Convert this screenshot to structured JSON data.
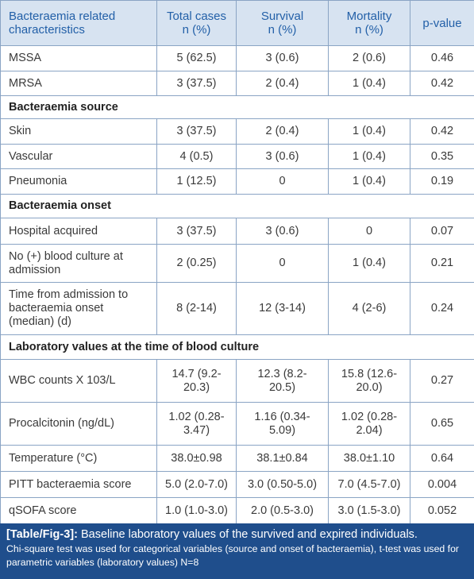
{
  "table": {
    "header": [
      [
        "Bacteraemia related",
        "characteristics"
      ],
      [
        "Total cases",
        "n (%)"
      ],
      [
        "Survival",
        "n (%)"
      ],
      [
        "Mortality",
        "n (%)"
      ],
      [
        "p-value"
      ]
    ],
    "rows": [
      {
        "cells": [
          "MSSA",
          "5 (62.5)",
          "3 (0.6)",
          "2 (0.6)",
          "0.46"
        ]
      },
      {
        "cells": [
          "MRSA",
          "3 (37.5)",
          "2 (0.4)",
          "1 (0.4)",
          "0.42"
        ]
      },
      {
        "section": "Bacteraemia source"
      },
      {
        "cells": [
          "Skin",
          "3 (37.5)",
          "2 (0.4)",
          "1 (0.4)",
          "0.42"
        ]
      },
      {
        "cells": [
          "Vascular",
          "4 (0.5)",
          "3 (0.6)",
          "1 (0.4)",
          "0.35"
        ]
      },
      {
        "cells": [
          "Pneumonia",
          "1 (12.5)",
          "0",
          "1 (0.4)",
          "0.19"
        ]
      },
      {
        "section": "Bacteraemia onset"
      },
      {
        "cells": [
          "Hospital acquired",
          "3 (37.5)",
          "3 (0.6)",
          "0",
          "0.07"
        ]
      },
      {
        "cells": [
          "No (+) blood culture at admission",
          "2 (0.25)",
          "0",
          "1 (0.4)",
          "0.21"
        ]
      },
      {
        "cells": [
          "Time from admission to bacteraemia onset (median) (d)",
          "8 (2-14)",
          "12 (3-14)",
          "4 (2-6)",
          "0.24"
        ]
      },
      {
        "section": "Laboratory values at the time of blood culture"
      },
      {
        "cells": [
          "WBC counts X 103/L",
          "14.7 (9.2-20.3)",
          "12.3 (8.2-20.5)",
          "15.8 (12.6-20.0)",
          "0.27"
        ]
      },
      {
        "cells": [
          "Procalcitonin (ng/dL)",
          "1.02 (0.28-3.47)",
          "1.16 (0.34-5.09)",
          "1.02 (0.28-2.04)",
          "0.65"
        ]
      },
      {
        "cells": [
          "Temperature (°C)",
          "38.0±0.98",
          "38.1±0.84",
          "38.0±1.10",
          "0.64"
        ]
      },
      {
        "cells": [
          "PITT bacteraemia score",
          "5.0 (2.0-7.0)",
          "3.0 (0.50-5.0)",
          "7.0 (4.5-7.0)",
          "0.004"
        ]
      },
      {
        "cells": [
          "qSOFA score",
          "1.0 (1.0-3.0)",
          "2.0 (0.5-3.0)",
          "3.0 (1.5-3.0)",
          "0.052"
        ]
      }
    ]
  },
  "caption": {
    "label": "[Table/Fig-3]:",
    "title": "Baseline laboratory values of the survived and expired individuals.",
    "note": "Chi-square test was used for categorical variables (source and onset of bacteraemia), t-test was used for parametric variables (laboratory values) N=8"
  }
}
